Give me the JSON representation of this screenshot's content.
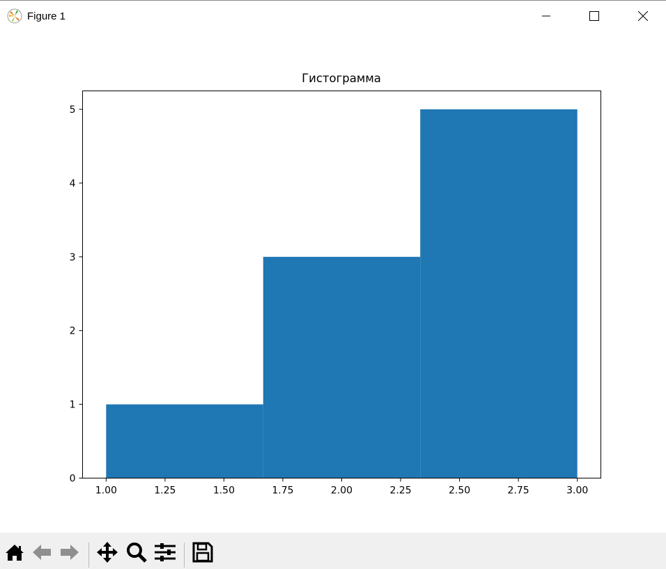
{
  "window": {
    "title": "Figure 1",
    "controls": [
      "minimize-icon",
      "maximize-icon",
      "close-icon"
    ]
  },
  "toolbar": {
    "buttons": [
      "home-icon",
      "back-icon",
      "forward-icon",
      "pan-icon",
      "zoom-icon",
      "configure-subplots-icon",
      "save-icon"
    ]
  },
  "chart_data": {
    "type": "bar",
    "title": "Гистограмма",
    "xlabel": "",
    "ylabel": "",
    "bins": [
      {
        "x0": 1.0,
        "x1": 1.6667,
        "count": 1
      },
      {
        "x0": 1.6667,
        "x1": 2.3333,
        "count": 3
      },
      {
        "x0": 2.3333,
        "x1": 3.0,
        "count": 5
      }
    ],
    "xlim": [
      0.9,
      3.1
    ],
    "ylim": [
      0,
      5.25
    ],
    "xticks": [
      "1.00",
      "1.25",
      "1.50",
      "1.75",
      "2.00",
      "2.25",
      "2.50",
      "2.75",
      "3.00"
    ],
    "yticks": [
      "0",
      "1",
      "2",
      "3",
      "4",
      "5"
    ],
    "grid": false,
    "color": "#1f77b4"
  }
}
